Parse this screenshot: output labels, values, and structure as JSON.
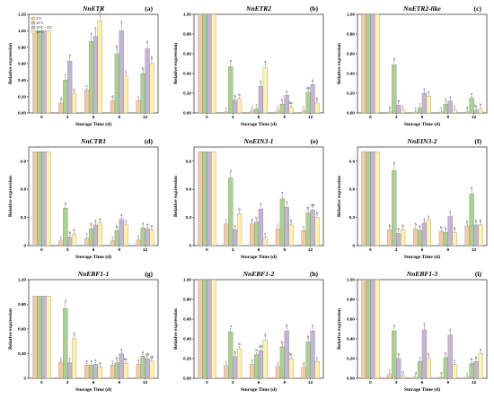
{
  "colors": {
    "4C": "#f5c9a3",
    "25C": "#a9d18e",
    "25C_UV": "#c4b2d8",
    "15C": "#fff2a8",
    "bar_stroke": "#777777"
  },
  "legend": [
    "4°C",
    "25°C",
    "25°C + UV",
    "15°C"
  ],
  "chart_data": [
    {
      "type": "bar",
      "title": "NnETR",
      "letter": "(a)",
      "xlabel": "Storage Time (d)",
      "ylabel": "Relative expression",
      "ylim": [
        0,
        1.2
      ],
      "yticks": [
        "0.00",
        "0.20",
        "0.40",
        "0.60",
        "0.80",
        "1.00",
        "1.20"
      ],
      "categories": [
        "0",
        "3",
        "6",
        "9",
        "12"
      ],
      "legend_shown": true,
      "series": [
        {
          "name": "4°C",
          "values": [
            1.0,
            0.12,
            0.28,
            0.15,
            0.15
          ],
          "sig": [
            "",
            "d",
            "c",
            "d",
            "c"
          ]
        },
        {
          "name": "25°C",
          "values": [
            1.0,
            0.4,
            0.87,
            0.72,
            0.48
          ],
          "sig": [
            "",
            "c",
            "a",
            "b",
            "b"
          ]
        },
        {
          "name": "25°C + UV",
          "values": [
            1.0,
            0.63,
            0.93,
            1.0,
            0.78
          ],
          "sig": [
            "",
            "a",
            "a",
            "a",
            "a"
          ]
        },
        {
          "name": "15°C",
          "values": [
            1.0,
            0.23,
            1.12,
            0.45,
            0.6
          ],
          "sig": [
            "",
            "b",
            "a",
            "c",
            "b"
          ]
        }
      ]
    },
    {
      "type": "bar",
      "title": "NnETR2",
      "letter": "(b)",
      "xlabel": "Storage Time (d)",
      "ylabel": "Relative expression",
      "ylim": [
        0,
        1.0
      ],
      "yticks": [
        "0.00",
        "0.20",
        "0.40",
        "0.60",
        "0.80",
        "1.00"
      ],
      "categories": [
        "0",
        "3",
        "6",
        "9",
        "12"
      ],
      "series": [
        {
          "name": "4°C",
          "values": [
            1.0,
            0.01,
            0.02,
            0.02,
            0.02
          ],
          "sig": [
            "",
            "c",
            "c",
            "c",
            "c"
          ]
        },
        {
          "name": "25°C",
          "values": [
            1.0,
            0.47,
            0.04,
            0.09,
            0.21
          ],
          "sig": [
            "",
            "a",
            "c",
            "b",
            "ab"
          ]
        },
        {
          "name": "25°C + UV",
          "values": [
            1.0,
            0.13,
            0.27,
            0.18,
            0.29
          ],
          "sig": [
            "",
            "b",
            "b",
            "a",
            "a"
          ]
        },
        {
          "name": "15°C",
          "values": [
            1.0,
            0.14,
            0.46,
            0.06,
            0.1
          ],
          "sig": [
            "",
            "b",
            "a",
            "bc",
            "b"
          ]
        }
      ]
    },
    {
      "type": "bar",
      "title": "NnETR2-like",
      "letter": "(c)",
      "xlabel": "Storage Time (d)",
      "ylabel": "Relative expression",
      "ylim": [
        0,
        1.0
      ],
      "yticks": [
        "0.00",
        "0.20",
        "0.40",
        "0.60",
        "0.80",
        "1.00"
      ],
      "categories": [
        "0",
        "3",
        "6",
        "9",
        "12"
      ],
      "series": [
        {
          "name": "4°C",
          "values": [
            1.0,
            0.01,
            0.01,
            0.01,
            0.01
          ],
          "sig": [
            "",
            "d",
            "c",
            "c",
            "d"
          ]
        },
        {
          "name": "25°C",
          "values": [
            1.0,
            0.49,
            0.05,
            0.09,
            0.15
          ],
          "sig": [
            "",
            "a",
            "c",
            "b",
            "a"
          ]
        },
        {
          "name": "25°C + UV",
          "values": [
            1.0,
            0.08,
            0.2,
            0.12,
            0.03
          ],
          "sig": [
            "",
            "b",
            "a",
            "a",
            "bc"
          ]
        },
        {
          "name": "15°C",
          "values": [
            1.0,
            0.03,
            0.17,
            0.03,
            0.04
          ],
          "sig": [
            "",
            "c",
            "a",
            "c",
            "b"
          ]
        }
      ]
    },
    {
      "type": "bar",
      "title": "NnCTR1",
      "letter": "(d)",
      "xlabel": "Storage Time (d)",
      "ylabel": "Relative expression",
      "ylim": [
        0,
        1.05
      ],
      "yticks": [
        "0",
        "0.3",
        "0.6",
        "0.9"
      ],
      "yticks_values": [
        0,
        0.3,
        0.6,
        0.9
      ],
      "categories": [
        "0",
        "3",
        "6",
        "9",
        "12"
      ],
      "series": [
        {
          "name": "4°C",
          "values": [
            1.0,
            0.05,
            0.08,
            0.05,
            0.06
          ],
          "sig": [
            "",
            "c",
            "c",
            "c",
            "c"
          ]
        },
        {
          "name": "25°C",
          "values": [
            1.0,
            0.4,
            0.18,
            0.16,
            0.19
          ],
          "sig": [
            "",
            "a",
            "b",
            "b",
            "a"
          ]
        },
        {
          "name": "25°C + UV",
          "values": [
            1.0,
            0.09,
            0.22,
            0.28,
            0.18
          ],
          "sig": [
            "",
            "b",
            "a",
            "a",
            "a"
          ]
        },
        {
          "name": "15°C",
          "values": [
            1.0,
            0.12,
            0.24,
            0.22,
            0.17
          ],
          "sig": [
            "",
            "b",
            "a",
            "a",
            "a"
          ]
        }
      ]
    },
    {
      "type": "bar",
      "title": "NnEIN3-1",
      "letter": "(e)",
      "xlabel": "Storage Time (d)",
      "ylabel": "Relative expression",
      "ylim": [
        0,
        1.05
      ],
      "yticks": [
        "0",
        "0.3",
        "0.6",
        "0.9"
      ],
      "yticks_values": [
        0,
        0.3,
        0.6,
        0.9
      ],
      "categories": [
        "0",
        "3",
        "6",
        "9",
        "12"
      ],
      "series": [
        {
          "name": "4°C",
          "values": [
            1.0,
            0.23,
            0.23,
            0.18,
            0.16
          ],
          "sig": [
            "",
            "c",
            "b",
            "c",
            "c"
          ]
        },
        {
          "name": "25°C",
          "values": [
            1.0,
            0.72,
            0.25,
            0.5,
            0.35
          ],
          "sig": [
            "",
            "a",
            "b",
            "a",
            "b"
          ]
        },
        {
          "name": "25°C + UV",
          "values": [
            1.0,
            0.17,
            0.39,
            0.41,
            0.38
          ],
          "sig": [
            "",
            "c",
            "a",
            "a",
            "ab"
          ]
        },
        {
          "name": "15°C",
          "values": [
            1.0,
            0.34,
            0.08,
            0.22,
            0.3
          ],
          "sig": [
            "",
            "b",
            "c",
            "b",
            "b"
          ]
        }
      ]
    },
    {
      "type": "bar",
      "title": "NnEIN3-2",
      "letter": "(f)",
      "xlabel": "Storage Time (d)",
      "ylabel": "Relative expression",
      "ylim": [
        0,
        1.05
      ],
      "yticks": [
        "0",
        "0.3",
        "0.6",
        "0.9"
      ],
      "yticks_values": [
        0,
        0.3,
        0.6,
        0.9
      ],
      "categories": [
        "0",
        "3",
        "6",
        "9",
        "12"
      ],
      "series": [
        {
          "name": "4°C",
          "values": [
            1.0,
            0.17,
            0.18,
            0.15,
            0.21
          ],
          "sig": [
            "",
            "b",
            "b",
            "b",
            "b"
          ]
        },
        {
          "name": "25°C",
          "values": [
            1.0,
            0.8,
            0.16,
            0.14,
            0.55
          ],
          "sig": [
            "",
            "a",
            "b",
            "b",
            "a"
          ]
        },
        {
          "name": "25°C + UV",
          "values": [
            1.0,
            0.13,
            0.24,
            0.31,
            0.22
          ],
          "sig": [
            "",
            "b",
            "a",
            "a",
            "b"
          ]
        },
        {
          "name": "15°C",
          "values": [
            1.0,
            0.17,
            0.27,
            0.14,
            0.22
          ],
          "sig": [
            "",
            "b",
            "a",
            "b",
            "b"
          ]
        }
      ]
    },
    {
      "type": "bar",
      "title": "NnEBF1-1",
      "letter": "(g)",
      "xlabel": "Storage Time (d)",
      "ylabel": "Relative expression",
      "ylim": [
        0,
        1.2
      ],
      "yticks": [
        "0",
        "0.30",
        "0.60",
        "0.90",
        "1.20"
      ],
      "yticks_values": [
        0,
        0.3,
        0.6,
        0.9,
        1.2
      ],
      "categories": [
        "0",
        "3",
        "6",
        "9",
        "12"
      ],
      "series": [
        {
          "name": "4°C",
          "values": [
            1.0,
            0.2,
            0.16,
            0.16,
            0.17
          ],
          "sig": [
            "",
            "c",
            "a",
            "c",
            "a"
          ]
        },
        {
          "name": "25°C",
          "values": [
            1.0,
            0.85,
            0.16,
            0.19,
            0.27
          ],
          "sig": [
            "",
            "a",
            "a",
            "b",
            "a"
          ]
        },
        {
          "name": "25°C + UV",
          "values": [
            1.0,
            0.19,
            0.17,
            0.3,
            0.24
          ],
          "sig": [
            "",
            "c",
            "a",
            "a",
            "ab"
          ]
        },
        {
          "name": "15°C",
          "values": [
            1.0,
            0.48,
            0.14,
            0.18,
            0.21
          ],
          "sig": [
            "",
            "b",
            "a",
            "bc",
            "ab"
          ]
        }
      ]
    },
    {
      "type": "bar",
      "title": "NnEBF1-2",
      "letter": "(h)",
      "xlabel": "Storage Time (d)",
      "ylabel": "Relative expression",
      "ylim": [
        0,
        1.0
      ],
      "yticks": [
        "0.00",
        "0.20",
        "0.40",
        "0.60",
        "0.80",
        "1.00"
      ],
      "categories": [
        "0",
        "3",
        "6",
        "9",
        "12"
      ],
      "series": [
        {
          "name": "4°C",
          "values": [
            1.0,
            0.13,
            0.14,
            0.12,
            0.11
          ],
          "sig": [
            "",
            "c",
            "c",
            "c",
            "d"
          ]
        },
        {
          "name": "25°C",
          "values": [
            1.0,
            0.47,
            0.24,
            0.32,
            0.37
          ],
          "sig": [
            "",
            "a",
            "b",
            "b",
            "b"
          ]
        },
        {
          "name": "25°C + UV",
          "values": [
            1.0,
            0.22,
            0.28,
            0.48,
            0.48
          ],
          "sig": [
            "",
            "b",
            "ab",
            "a",
            "a"
          ]
        },
        {
          "name": "15°C",
          "values": [
            1.0,
            0.3,
            0.39,
            0.2,
            0.17
          ],
          "sig": [
            "",
            "b",
            "a",
            "bc",
            "c"
          ]
        }
      ]
    },
    {
      "type": "bar",
      "title": "NnEBF1-3",
      "letter": "(i)",
      "xlabel": "Storage Time (d)",
      "ylabel": "Relative expression",
      "ylim": [
        0,
        1.0
      ],
      "yticks": [
        "0.00",
        "0.20",
        "0.40",
        "0.60",
        "0.80",
        "1.00"
      ],
      "categories": [
        "0",
        "3",
        "6",
        "9",
        "12"
      ],
      "series": [
        {
          "name": "4°C",
          "values": [
            1.0,
            0.04,
            0.01,
            0.01,
            0.01
          ],
          "sig": [
            "",
            "c",
            "d",
            "d",
            "c"
          ]
        },
        {
          "name": "25°C",
          "values": [
            1.0,
            0.48,
            0.17,
            0.21,
            0.15
          ],
          "sig": [
            "",
            "a",
            "c",
            "b",
            "b"
          ]
        },
        {
          "name": "25°C + UV",
          "values": [
            1.0,
            0.2,
            0.49,
            0.44,
            0.17
          ],
          "sig": [
            "",
            "b",
            "a",
            "a",
            "b"
          ]
        },
        {
          "name": "15°C",
          "values": [
            1.0,
            0.02,
            0.2,
            0.14,
            0.25
          ],
          "sig": [
            "",
            "d",
            "b",
            "c",
            "a"
          ]
        }
      ]
    }
  ]
}
